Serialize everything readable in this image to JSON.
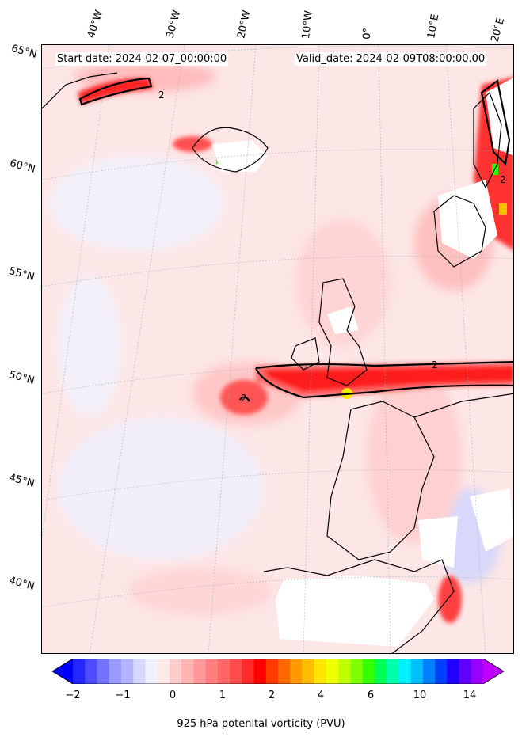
{
  "header": {
    "start_date": "Start date: 2024-02-07_00:00:00",
    "valid_date": "Valid_date: 2024-02-09T08:00:00.00"
  },
  "axes": {
    "longitude_labels": [
      "40°W",
      "30°W",
      "20°W",
      "10°W",
      "0°",
      "10°E",
      "20°E"
    ],
    "latitude_labels": [
      "65°N",
      "60°N",
      "55°N",
      "50°N",
      "45°N",
      "40°N"
    ]
  },
  "contour_labels": [
    "2",
    "2",
    "2",
    "2"
  ],
  "colorbar": {
    "tick_labels": [
      "−2",
      "−1",
      "0",
      "1",
      "2",
      "4",
      "6",
      "10",
      "14"
    ],
    "label": "925 hPa potenital vorticity (PVU)",
    "colors": [
      "#0000ff",
      "#2626ff",
      "#4d4dff",
      "#7373ff",
      "#9999ff",
      "#b3b3ff",
      "#d6d6ff",
      "#f0f0ff",
      "#ffe9e9",
      "#ffcccc",
      "#ffb3b3",
      "#ff9999",
      "#ff7f7f",
      "#ff6666",
      "#ff4c4c",
      "#ff2a2a",
      "#ff0000",
      "#ff3b00",
      "#ff6a00",
      "#ff9900",
      "#ffbf00",
      "#ffe600",
      "#f0ff00",
      "#c0ff00",
      "#80ff00",
      "#33ff00",
      "#00ff55",
      "#00ffaa",
      "#00f0ff",
      "#00bfff",
      "#0080ff",
      "#0040ff",
      "#2000ff",
      "#6000ff",
      "#9a00ff",
      "#c000ff"
    ]
  }
}
